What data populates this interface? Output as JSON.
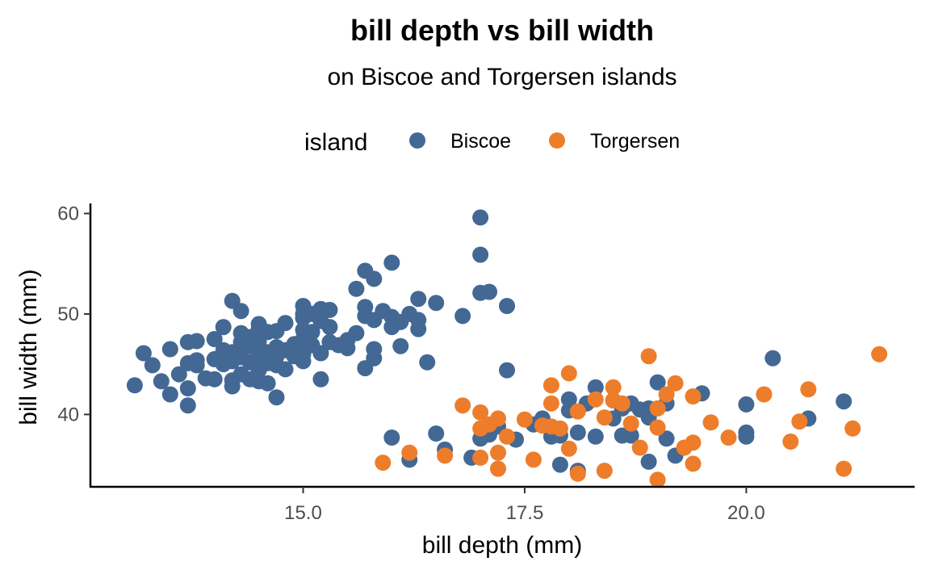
{
  "chart_data": {
    "type": "scatter",
    "title": "bill depth vs bill width",
    "subtitle": "on Biscoe and Torgersen islands",
    "xlabel": "bill depth (mm)",
    "ylabel": "bill width (mm)",
    "xlim": [
      12.6,
      21.9
    ],
    "ylim": [
      32.8,
      61
    ],
    "x_ticks": [
      15.0,
      17.5,
      20.0
    ],
    "x_tick_labels": [
      "15.0",
      "17.5",
      "20.0"
    ],
    "y_ticks": [
      40,
      50,
      60
    ],
    "y_tick_labels": [
      "40",
      "50",
      "60"
    ],
    "grid": false,
    "legend": {
      "title": "island",
      "position": "top"
    },
    "series": [
      {
        "name": "Biscoe",
        "color": "#436894",
        "points": [
          [
            13.1,
            42.9
          ],
          [
            13.2,
            46.1
          ],
          [
            13.3,
            44.9
          ],
          [
            13.4,
            43.3
          ],
          [
            13.5,
            42.0
          ],
          [
            13.5,
            46.5
          ],
          [
            13.6,
            44.0
          ],
          [
            13.7,
            45.1
          ],
          [
            13.7,
            40.9
          ],
          [
            13.7,
            42.6
          ],
          [
            13.7,
            47.2
          ],
          [
            13.8,
            45.4
          ],
          [
            13.8,
            47.3
          ],
          [
            13.8,
            44.9
          ],
          [
            13.9,
            43.6
          ],
          [
            14.0,
            43.5
          ],
          [
            14.0,
            45.5
          ],
          [
            14.0,
            47.5
          ],
          [
            14.1,
            45.0
          ],
          [
            14.1,
            48.7
          ],
          [
            14.1,
            46.4
          ],
          [
            14.2,
            45.3
          ],
          [
            14.2,
            43.4
          ],
          [
            14.2,
            46.2
          ],
          [
            14.2,
            42.8
          ],
          [
            14.2,
            51.3
          ],
          [
            14.3,
            48.1
          ],
          [
            14.3,
            46.4
          ],
          [
            14.3,
            45.7
          ],
          [
            14.3,
            47.2
          ],
          [
            14.3,
            44.0
          ],
          [
            14.3,
            50.3
          ],
          [
            14.4,
            45.2
          ],
          [
            14.4,
            47.7
          ],
          [
            14.4,
            46.8
          ],
          [
            14.4,
            43.5
          ],
          [
            14.5,
            46.1
          ],
          [
            14.5,
            43.3
          ],
          [
            14.5,
            45.5
          ],
          [
            14.5,
            48.5
          ],
          [
            14.5,
            49.0
          ],
          [
            14.5,
            47.3
          ],
          [
            14.5,
            44.4
          ],
          [
            14.6,
            45.1
          ],
          [
            14.6,
            46.2
          ],
          [
            14.6,
            48.2
          ],
          [
            14.6,
            43.1
          ],
          [
            14.6,
            45.6
          ],
          [
            14.7,
            45.8
          ],
          [
            14.7,
            48.3
          ],
          [
            14.7,
            44.9
          ],
          [
            14.7,
            46.7
          ],
          [
            14.7,
            41.7
          ],
          [
            14.8,
            44.5
          ],
          [
            14.8,
            46.4
          ],
          [
            14.8,
            49.1
          ],
          [
            14.9,
            45.8
          ],
          [
            14.9,
            47.0
          ],
          [
            15.0,
            45.3
          ],
          [
            15.0,
            50.8
          ],
          [
            15.0,
            49.6
          ],
          [
            15.0,
            48.4
          ],
          [
            15.0,
            47.5
          ],
          [
            15.0,
            46.0
          ],
          [
            15.0,
            50.0
          ],
          [
            15.1,
            50.0
          ],
          [
            15.1,
            46.9
          ],
          [
            15.1,
            48.2
          ],
          [
            15.2,
            46.1
          ],
          [
            15.2,
            49.3
          ],
          [
            15.2,
            50.5
          ],
          [
            15.2,
            43.5
          ],
          [
            15.3,
            50.4
          ],
          [
            15.3,
            47.2
          ],
          [
            15.3,
            48.7
          ],
          [
            15.4,
            46.9
          ],
          [
            15.5,
            47.4
          ],
          [
            15.5,
            46.6
          ],
          [
            15.6,
            52.5
          ],
          [
            15.6,
            48.1
          ],
          [
            15.7,
            54.3
          ],
          [
            15.7,
            50.7
          ],
          [
            15.7,
            49.8
          ],
          [
            15.7,
            44.6
          ],
          [
            15.8,
            53.5
          ],
          [
            15.8,
            49.4
          ],
          [
            15.8,
            45.6
          ],
          [
            15.8,
            46.5
          ],
          [
            15.9,
            50.3
          ],
          [
            16.0,
            55.1
          ],
          [
            16.0,
            48.7
          ],
          [
            16.0,
            49.7
          ],
          [
            16.1,
            49.2
          ],
          [
            16.1,
            46.8
          ],
          [
            16.2,
            50.0
          ],
          [
            16.3,
            51.5
          ],
          [
            16.3,
            48.5
          ],
          [
            16.3,
            49.4
          ],
          [
            16.4,
            45.2
          ],
          [
            16.5,
            51.1
          ],
          [
            16.8,
            49.8
          ],
          [
            17.0,
            59.6
          ],
          [
            17.0,
            55.9
          ],
          [
            17.0,
            52.1
          ],
          [
            17.1,
            52.2
          ],
          [
            17.3,
            50.8
          ],
          [
            17.3,
            44.4
          ],
          [
            16.0,
            37.7
          ],
          [
            16.2,
            35.5
          ],
          [
            16.5,
            38.1
          ],
          [
            16.6,
            36.5
          ],
          [
            16.9,
            35.7
          ],
          [
            17.0,
            37.6
          ],
          [
            17.1,
            38.0
          ],
          [
            17.2,
            38.8
          ],
          [
            17.4,
            37.5
          ],
          [
            17.6,
            39.0
          ],
          [
            17.7,
            39.6
          ],
          [
            17.8,
            37.8
          ],
          [
            17.9,
            37.9
          ],
          [
            17.9,
            35.0
          ],
          [
            18.0,
            40.4
          ],
          [
            18.0,
            41.5
          ],
          [
            18.1,
            34.4
          ],
          [
            18.1,
            38.2
          ],
          [
            18.2,
            41.1
          ],
          [
            18.3,
            42.7
          ],
          [
            18.3,
            37.8
          ],
          [
            18.5,
            41.4
          ],
          [
            18.5,
            39.6
          ],
          [
            18.6,
            40.6
          ],
          [
            18.6,
            37.9
          ],
          [
            18.7,
            41.1
          ],
          [
            18.7,
            37.9
          ],
          [
            18.8,
            40.5
          ],
          [
            18.9,
            39.7
          ],
          [
            18.9,
            35.3
          ],
          [
            18.9,
            40.6
          ],
          [
            19.0,
            43.2
          ],
          [
            19.1,
            41.1
          ],
          [
            19.1,
            37.6
          ],
          [
            19.2,
            35.9
          ],
          [
            19.5,
            42.1
          ],
          [
            20.0,
            41.0
          ],
          [
            20.0,
            38.2
          ],
          [
            20.0,
            37.8
          ],
          [
            20.3,
            45.6
          ],
          [
            20.7,
            39.6
          ],
          [
            21.1,
            41.3
          ]
        ]
      },
      {
        "name": "Torgersen",
        "color": "#ED7D2A",
        "points": [
          [
            15.9,
            35.2
          ],
          [
            16.2,
            36.2
          ],
          [
            16.6,
            35.9
          ],
          [
            16.8,
            40.9
          ],
          [
            17.0,
            40.2
          ],
          [
            17.0,
            38.6
          ],
          [
            17.0,
            35.7
          ],
          [
            17.1,
            39.0
          ],
          [
            17.2,
            36.2
          ],
          [
            17.2,
            34.6
          ],
          [
            17.2,
            39.6
          ],
          [
            17.3,
            37.8
          ],
          [
            17.5,
            39.5
          ],
          [
            17.6,
            35.5
          ],
          [
            17.7,
            38.9
          ],
          [
            17.8,
            42.9
          ],
          [
            17.8,
            41.1
          ],
          [
            17.8,
            38.8
          ],
          [
            17.9,
            38.6
          ],
          [
            18.0,
            36.6
          ],
          [
            18.0,
            44.1
          ],
          [
            18.1,
            40.3
          ],
          [
            18.1,
            34.1
          ],
          [
            18.3,
            41.5
          ],
          [
            18.4,
            39.7
          ],
          [
            18.4,
            34.4
          ],
          [
            18.5,
            42.7
          ],
          [
            18.5,
            41.4
          ],
          [
            18.6,
            41.1
          ],
          [
            18.7,
            39.1
          ],
          [
            18.8,
            36.7
          ],
          [
            18.9,
            45.8
          ],
          [
            19.0,
            40.6
          ],
          [
            19.0,
            38.7
          ],
          [
            19.0,
            33.5
          ],
          [
            19.1,
            42.0
          ],
          [
            19.2,
            43.1
          ],
          [
            19.3,
            36.7
          ],
          [
            19.4,
            37.2
          ],
          [
            19.4,
            41.8
          ],
          [
            19.4,
            35.1
          ],
          [
            19.6,
            39.2
          ],
          [
            19.8,
            37.7
          ],
          [
            20.2,
            42.0
          ],
          [
            20.5,
            37.3
          ],
          [
            20.6,
            39.3
          ],
          [
            20.7,
            42.5
          ],
          [
            21.1,
            34.6
          ],
          [
            21.2,
            38.6
          ],
          [
            21.5,
            46.0
          ]
        ]
      }
    ]
  }
}
